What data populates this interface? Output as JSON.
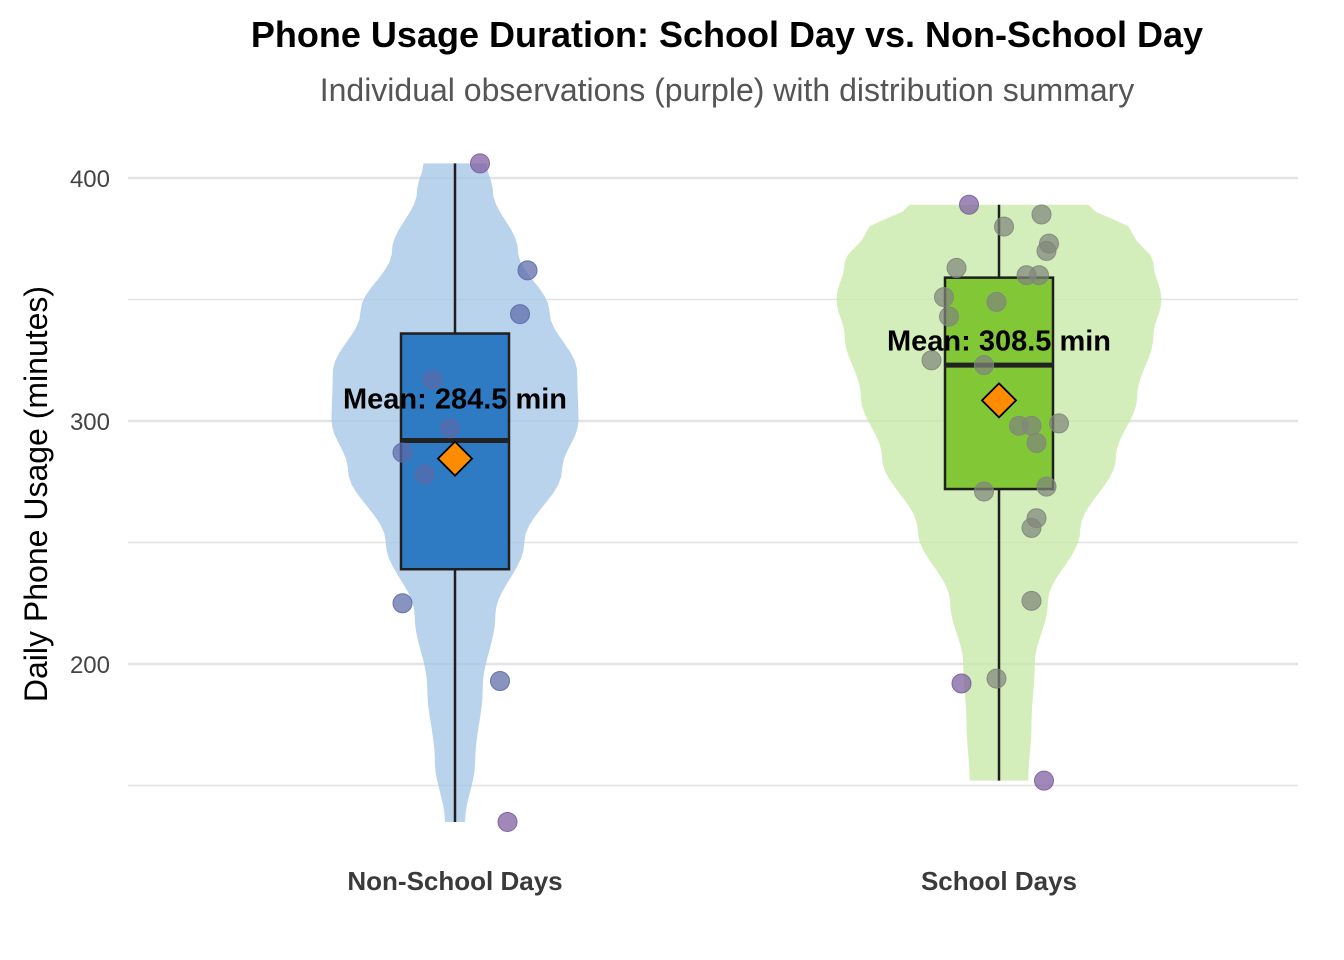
{
  "title": "Phone Usage Duration: School Day vs. Non-School Day",
  "subtitle": "Individual observations (purple) with distribution summary",
  "colors": {
    "violin_nonschool": "#a7c6e7",
    "violin_school": "#c8e9a8",
    "box_nonschool": "#2e7bc4",
    "box_school": "#82c736",
    "point_nonschool": "#5a6aa8",
    "point_school_gray": "#7f867c",
    "point_purple": "#7b5c9e",
    "mean_marker": "#ff8c00",
    "grid": "#e3e3e3"
  },
  "chart_data": {
    "type": "violin",
    "ylabel": "Daily Phone Usage (minutes)",
    "xlabel": "",
    "ylim": [
      135,
      412
    ],
    "yticks": [
      200,
      300,
      400
    ],
    "grid": true,
    "categories": [
      "Non-School Days",
      "School Days"
    ],
    "groups": [
      {
        "category": "Non-School Days",
        "violin_range": [
          135,
          406
        ],
        "violin_profile": [
          [
            135,
            0.08
          ],
          [
            160,
            0.16
          ],
          [
            190,
            0.22
          ],
          [
            220,
            0.32
          ],
          [
            250,
            0.55
          ],
          [
            280,
            0.85
          ],
          [
            300,
            0.98
          ],
          [
            320,
            0.97
          ],
          [
            345,
            0.75
          ],
          [
            370,
            0.5
          ],
          [
            395,
            0.3
          ],
          [
            406,
            0.25
          ]
        ],
        "box": {
          "q1": 239,
          "median": 292,
          "q3": 336,
          "whisker_low": 135,
          "whisker_high": 406
        },
        "mean": 284.5,
        "mean_label": "Mean: 284.5 min",
        "points": [
          {
            "x_jitter": 0.1,
            "y": 406,
            "tone": "purple"
          },
          {
            "x_jitter": 0.29,
            "y": 362,
            "tone": "base"
          },
          {
            "x_jitter": 0.26,
            "y": 344,
            "tone": "base"
          },
          {
            "x_jitter": -0.09,
            "y": 317,
            "tone": "base"
          },
          {
            "x_jitter": -0.02,
            "y": 297,
            "tone": "base"
          },
          {
            "x_jitter": -0.21,
            "y": 287,
            "tone": "base"
          },
          {
            "x_jitter": -0.12,
            "y": 278,
            "tone": "base"
          },
          {
            "x_jitter": -0.21,
            "y": 225,
            "tone": "base"
          },
          {
            "x_jitter": 0.18,
            "y": 193,
            "tone": "base"
          },
          {
            "x_jitter": 0.21,
            "y": 135,
            "tone": "purple"
          }
        ]
      },
      {
        "category": "School Days",
        "violin_range": [
          152,
          389
        ],
        "violin_profile": [
          [
            152,
            0.18
          ],
          [
            175,
            0.2
          ],
          [
            200,
            0.22
          ],
          [
            225,
            0.3
          ],
          [
            255,
            0.5
          ],
          [
            285,
            0.72
          ],
          [
            310,
            0.85
          ],
          [
            335,
            0.95
          ],
          [
            350,
            1.0
          ],
          [
            365,
            0.95
          ],
          [
            378,
            0.82
          ],
          [
            389,
            0.55
          ]
        ],
        "box": {
          "q1": 272,
          "median": 323,
          "q3": 359,
          "whisker_low": 152,
          "whisker_high": 389
        },
        "mean": 308.5,
        "mean_label": "Mean: 308.5 min",
        "points": [
          {
            "x_jitter": -0.12,
            "y": 389,
            "tone": "purple"
          },
          {
            "x_jitter": 0.17,
            "y": 385,
            "tone": "base"
          },
          {
            "x_jitter": 0.02,
            "y": 380,
            "tone": "base"
          },
          {
            "x_jitter": 0.2,
            "y": 373,
            "tone": "base"
          },
          {
            "x_jitter": 0.19,
            "y": 370,
            "tone": "base"
          },
          {
            "x_jitter": -0.17,
            "y": 363,
            "tone": "base"
          },
          {
            "x_jitter": 0.11,
            "y": 360,
            "tone": "base"
          },
          {
            "x_jitter": 0.16,
            "y": 360,
            "tone": "base"
          },
          {
            "x_jitter": -0.22,
            "y": 351,
            "tone": "base"
          },
          {
            "x_jitter": -0.01,
            "y": 349,
            "tone": "base"
          },
          {
            "x_jitter": -0.2,
            "y": 343,
            "tone": "base"
          },
          {
            "x_jitter": -0.27,
            "y": 325,
            "tone": "base"
          },
          {
            "x_jitter": -0.06,
            "y": 323,
            "tone": "base"
          },
          {
            "x_jitter": 0.24,
            "y": 299,
            "tone": "base"
          },
          {
            "x_jitter": 0.08,
            "y": 298,
            "tone": "base"
          },
          {
            "x_jitter": 0.13,
            "y": 298,
            "tone": "base"
          },
          {
            "x_jitter": 0.15,
            "y": 291,
            "tone": "base"
          },
          {
            "x_jitter": 0.19,
            "y": 273,
            "tone": "base"
          },
          {
            "x_jitter": -0.06,
            "y": 271,
            "tone": "base"
          },
          {
            "x_jitter": 0.15,
            "y": 260,
            "tone": "base"
          },
          {
            "x_jitter": 0.13,
            "y": 256,
            "tone": "base"
          },
          {
            "x_jitter": 0.13,
            "y": 226,
            "tone": "base"
          },
          {
            "x_jitter": -0.01,
            "y": 194,
            "tone": "base"
          },
          {
            "x_jitter": -0.15,
            "y": 192,
            "tone": "purple"
          },
          {
            "x_jitter": 0.18,
            "y": 152,
            "tone": "purple"
          }
        ]
      }
    ]
  }
}
